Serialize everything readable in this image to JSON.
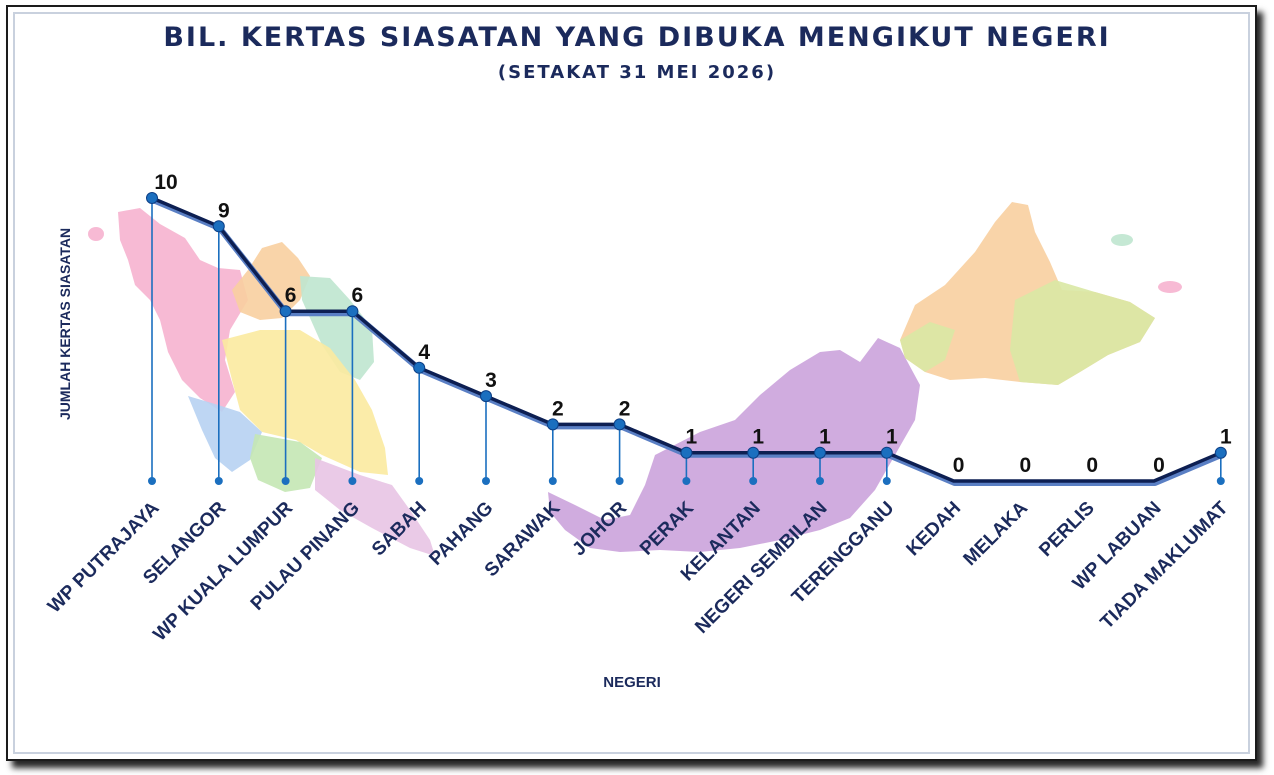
{
  "chart_data": {
    "type": "line",
    "title": "BIL. KERTAS SIASATAN YANG DIBUKA MENGIKUT NEGERI",
    "subtitle": "(SETAKAT 31 MEI 2026)",
    "xlabel": "NEGERI",
    "ylabel": "JUMLAH KERTAS SIASATAN",
    "categories": [
      "WP PUTRAJAYA",
      "SELANGOR",
      "WP KUALA LUMPUR",
      "PULAU PINANG",
      "SABAH",
      "PAHANG",
      "SARAWAK",
      "JOHOR",
      "PERAK",
      "KELANTAN",
      "NEGERI SEMBILAN",
      "TERENGGANU",
      "KEDAH",
      "MELAKA",
      "PERLIS",
      "WP LABUAN",
      "TIADA MAKLUMAT"
    ],
    "values": [
      10,
      9,
      6,
      6,
      4,
      3,
      2,
      2,
      1,
      1,
      1,
      1,
      0,
      0,
      0,
      0,
      1
    ],
    "ylim": [
      0,
      10
    ],
    "grid": false,
    "legend": "none",
    "line_color": "#0d1f52",
    "marker_color": "#1b6fbf",
    "label_color": "#1b2a5c"
  }
}
